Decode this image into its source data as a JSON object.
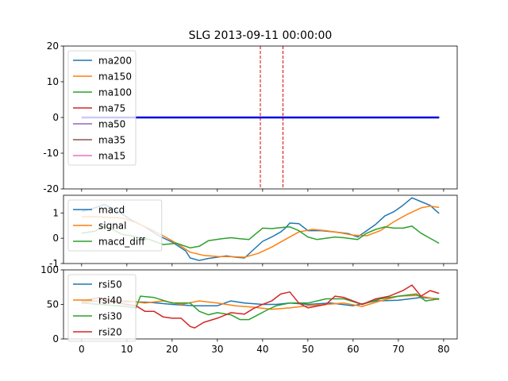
{
  "title": "SLG 2013-09-11 00:00:00",
  "chart_data": [
    {
      "type": "line",
      "id": "ma",
      "ylim": [
        -20,
        20
      ],
      "xlim": [
        -4,
        83
      ],
      "yticks": [
        -20,
        -10,
        0,
        10,
        20
      ],
      "xticks": [
        0,
        10,
        20,
        30,
        40,
        50,
        60,
        70,
        80
      ],
      "show_xtick_labels": false,
      "vlines": [
        39.5,
        44.5
      ],
      "vline_color": "#dd0000",
      "legend_location": "upper-left",
      "flat_span": [
        0,
        79
      ],
      "series": [
        {
          "name": "ma200",
          "color": "#1f77b4",
          "const": 0
        },
        {
          "name": "ma150",
          "color": "#ff7f0e",
          "const": 0
        },
        {
          "name": "ma100",
          "color": "#2ca02c",
          "const": 0
        },
        {
          "name": "ma75",
          "color": "#d62728",
          "const": 0
        },
        {
          "name": "ma50",
          "color": "#9467bd",
          "const": 0
        },
        {
          "name": "ma35",
          "color": "#8c564b",
          "const": 0
        },
        {
          "name": "ma15",
          "color": "#e377c2",
          "const": 0
        },
        {
          "name": "",
          "color": "#0000dd",
          "const": 0
        }
      ]
    },
    {
      "type": "line",
      "id": "macd",
      "ylim": [
        -1,
        1.7
      ],
      "xlim": [
        -4,
        83
      ],
      "yticks": [
        -1,
        0,
        1
      ],
      "xticks": [
        0,
        10,
        20,
        30,
        40,
        50,
        60,
        70,
        80
      ],
      "show_xtick_labels": false,
      "legend_location": "upper-left",
      "series": [
        {
          "name": "macd",
          "color": "#1f77b4",
          "points": [
            [
              0,
              1.05
            ],
            [
              2,
              1.15
            ],
            [
              5,
              1.33
            ],
            [
              7,
              1.18
            ],
            [
              9,
              0.95
            ],
            [
              11,
              0.72
            ],
            [
              14,
              0.45
            ],
            [
              17,
              0.1
            ],
            [
              20,
              -0.15
            ],
            [
              23,
              -0.5
            ],
            [
              24,
              -0.78
            ],
            [
              26,
              -0.88
            ],
            [
              28,
              -0.8
            ],
            [
              30,
              -0.75
            ],
            [
              32,
              -0.7
            ],
            [
              34,
              -0.75
            ],
            [
              36,
              -0.78
            ],
            [
              38,
              -0.45
            ],
            [
              40,
              -0.12
            ],
            [
              42,
              0.05
            ],
            [
              44,
              0.25
            ],
            [
              45,
              0.4
            ],
            [
              46,
              0.6
            ],
            [
              48,
              0.58
            ],
            [
              50,
              0.3
            ],
            [
              53,
              0.3
            ],
            [
              56,
              0.25
            ],
            [
              59,
              0.18
            ],
            [
              61,
              0.05
            ],
            [
              63,
              0.3
            ],
            [
              65,
              0.55
            ],
            [
              67,
              0.88
            ],
            [
              69,
              1.05
            ],
            [
              71,
              1.3
            ],
            [
              73,
              1.6
            ],
            [
              75,
              1.45
            ],
            [
              77,
              1.3
            ],
            [
              79,
              0.98
            ]
          ]
        },
        {
          "name": "signal",
          "color": "#ff7f0e",
          "points": [
            [
              0,
              0.85
            ],
            [
              3,
              0.85
            ],
            [
              6,
              0.83
            ],
            [
              9,
              0.8
            ],
            [
              12,
              0.62
            ],
            [
              15,
              0.38
            ],
            [
              18,
              0.1
            ],
            [
              21,
              -0.2
            ],
            [
              24,
              -0.55
            ],
            [
              27,
              -0.68
            ],
            [
              30,
              -0.72
            ],
            [
              33,
              -0.73
            ],
            [
              36,
              -0.75
            ],
            [
              39,
              -0.6
            ],
            [
              42,
              -0.35
            ],
            [
              45,
              -0.05
            ],
            [
              48,
              0.25
            ],
            [
              51,
              0.35
            ],
            [
              54,
              0.3
            ],
            [
              57,
              0.22
            ],
            [
              60,
              0.12
            ],
            [
              63,
              0.1
            ],
            [
              66,
              0.3
            ],
            [
              69,
              0.65
            ],
            [
              72,
              0.95
            ],
            [
              75,
              1.2
            ],
            [
              77,
              1.27
            ],
            [
              79,
              1.22
            ]
          ]
        },
        {
          "name": "macd_diff",
          "color": "#2ca02c",
          "points": [
            [
              0,
              0.2
            ],
            [
              3,
              0.28
            ],
            [
              5,
              0.48
            ],
            [
              7,
              0.33
            ],
            [
              9,
              0.15
            ],
            [
              11,
              0.1
            ],
            [
              13,
              0.02
            ],
            [
              15,
              -0.05
            ],
            [
              18,
              -0.25
            ],
            [
              21,
              -0.2
            ],
            [
              24,
              -0.38
            ],
            [
              26,
              -0.32
            ],
            [
              28,
              -0.1
            ],
            [
              31,
              -0.02
            ],
            [
              33,
              0.02
            ],
            [
              35,
              -0.02
            ],
            [
              37,
              -0.05
            ],
            [
              39,
              0.25
            ],
            [
              40,
              0.4
            ],
            [
              42,
              0.38
            ],
            [
              44,
              0.42
            ],
            [
              46,
              0.45
            ],
            [
              48,
              0.3
            ],
            [
              50,
              0.05
            ],
            [
              52,
              -0.05
            ],
            [
              54,
              0.0
            ],
            [
              56,
              0.05
            ],
            [
              58,
              0.02
            ],
            [
              61,
              -0.05
            ],
            [
              63,
              0.2
            ],
            [
              65,
              0.35
            ],
            [
              67,
              0.45
            ],
            [
              69,
              0.4
            ],
            [
              71,
              0.4
            ],
            [
              73,
              0.48
            ],
            [
              75,
              0.2
            ],
            [
              77,
              0.0
            ],
            [
              79,
              -0.2
            ]
          ]
        }
      ]
    },
    {
      "type": "line",
      "id": "rsi",
      "ylim": [
        0,
        100
      ],
      "xlim": [
        -4,
        83
      ],
      "yticks": [
        0,
        50,
        100
      ],
      "xticks": [
        0,
        10,
        20,
        30,
        40,
        50,
        60,
        70,
        80
      ],
      "show_xtick_labels": true,
      "legend_location": "upper-left",
      "series": [
        {
          "name": "rsi50",
          "color": "#1f77b4",
          "points": [
            [
              0,
              55
            ],
            [
              5,
              55
            ],
            [
              10,
              54
            ],
            [
              15,
              53
            ],
            [
              20,
              50
            ],
            [
              25,
              48
            ],
            [
              30,
              48
            ],
            [
              33,
              55
            ],
            [
              36,
              52
            ],
            [
              40,
              50
            ],
            [
              43,
              50
            ],
            [
              46,
              52
            ],
            [
              50,
              50
            ],
            [
              55,
              52
            ],
            [
              60,
              48
            ],
            [
              65,
              55
            ],
            [
              70,
              56
            ],
            [
              75,
              60
            ],
            [
              79,
              58
            ]
          ]
        },
        {
          "name": "rsi40",
          "color": "#ff7f0e",
          "points": [
            [
              0,
              53
            ],
            [
              5,
              55
            ],
            [
              10,
              55
            ],
            [
              14,
              52
            ],
            [
              18,
              55
            ],
            [
              22,
              50
            ],
            [
              26,
              55
            ],
            [
              30,
              52
            ],
            [
              34,
              48
            ],
            [
              38,
              46
            ],
            [
              42,
              43
            ],
            [
              46,
              45
            ],
            [
              50,
              48
            ],
            [
              54,
              50
            ],
            [
              58,
              52
            ],
            [
              62,
              47
            ],
            [
              66,
              55
            ],
            [
              70,
              62
            ],
            [
              74,
              63
            ],
            [
              79,
              57
            ]
          ]
        },
        {
          "name": "rsi30",
          "color": "#2ca02c",
          "points": [
            [
              0,
              52
            ],
            [
              4,
              50
            ],
            [
              8,
              48
            ],
            [
              10,
              47
            ],
            [
              12,
              45
            ],
            [
              13,
              62
            ],
            [
              16,
              60
            ],
            [
              20,
              52
            ],
            [
              24,
              52
            ],
            [
              26,
              40
            ],
            [
              28,
              35
            ],
            [
              30,
              38
            ],
            [
              33,
              35
            ],
            [
              35,
              28
            ],
            [
              37,
              28
            ],
            [
              39,
              35
            ],
            [
              41,
              42
            ],
            [
              43,
              48
            ],
            [
              46,
              52
            ],
            [
              50,
              52
            ],
            [
              54,
              58
            ],
            [
              58,
              58
            ],
            [
              62,
              50
            ],
            [
              66,
              58
            ],
            [
              70,
              62
            ],
            [
              74,
              65
            ],
            [
              76,
              55
            ],
            [
              79,
              58
            ]
          ]
        },
        {
          "name": "rsi20",
          "color": "#d62728",
          "points": [
            [
              0,
              55
            ],
            [
              4,
              60
            ],
            [
              8,
              52
            ],
            [
              12,
              48
            ],
            [
              14,
              40
            ],
            [
              16,
              40
            ],
            [
              18,
              32
            ],
            [
              20,
              30
            ],
            [
              22,
              30
            ],
            [
              24,
              18
            ],
            [
              25,
              16
            ],
            [
              27,
              24
            ],
            [
              30,
              30
            ],
            [
              33,
              38
            ],
            [
              36,
              36
            ],
            [
              38,
              44
            ],
            [
              40,
              50
            ],
            [
              42,
              55
            ],
            [
              44,
              65
            ],
            [
              46,
              68
            ],
            [
              48,
              52
            ],
            [
              50,
              45
            ],
            [
              54,
              50
            ],
            [
              56,
              62
            ],
            [
              58,
              60
            ],
            [
              62,
              50
            ],
            [
              65,
              58
            ],
            [
              68,
              62
            ],
            [
              71,
              70
            ],
            [
              73,
              78
            ],
            [
              75,
              62
            ],
            [
              77,
              70
            ],
            [
              79,
              66
            ]
          ]
        }
      ]
    }
  ]
}
